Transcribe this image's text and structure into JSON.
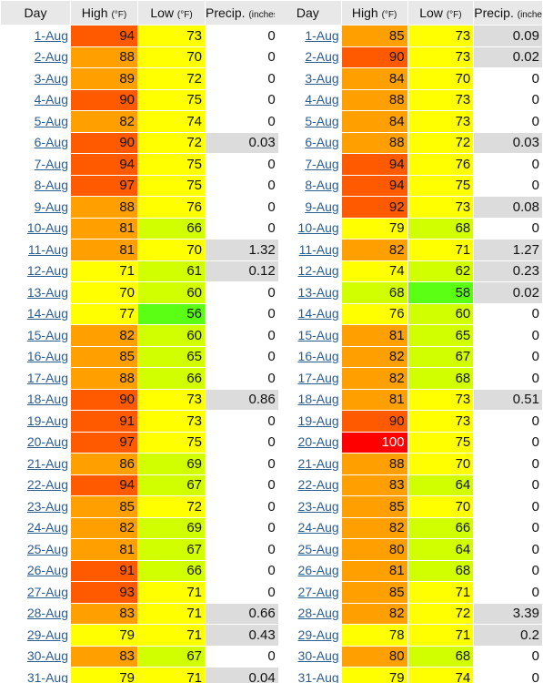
{
  "headers": {
    "day": "Day",
    "high": "High",
    "low": "Low",
    "precip": "Precip.",
    "temp_unit": "(°F)",
    "precip_unit_left": "(inches",
    "precip_unit_right": "(inche"
  },
  "colors": {
    "t100": "#ff0000",
    "t94_90": "#ff5a00",
    "t89_80": "#ff9f00",
    "t79_70": "#ffff00",
    "t69_60": "#d2ff00",
    "t59_50": "#5aff14",
    "precip_rain": "#dcdcdc",
    "precip_dry": "#ffffff",
    "link": "#2a5d8f"
  },
  "left": {
    "rows": [
      {
        "day": "1-Aug",
        "high": 94,
        "low": 73,
        "precip": "0"
      },
      {
        "day": "2-Aug",
        "high": 88,
        "low": 70,
        "precip": "0"
      },
      {
        "day": "3-Aug",
        "high": 89,
        "low": 72,
        "precip": "0"
      },
      {
        "day": "4-Aug",
        "high": 90,
        "low": 75,
        "precip": "0"
      },
      {
        "day": "5-Aug",
        "high": 82,
        "low": 74,
        "precip": "0"
      },
      {
        "day": "6-Aug",
        "high": 90,
        "low": 72,
        "precip": "0.03"
      },
      {
        "day": "7-Aug",
        "high": 94,
        "low": 75,
        "precip": "0"
      },
      {
        "day": "8-Aug",
        "high": 97,
        "low": 75,
        "precip": "0"
      },
      {
        "day": "9-Aug",
        "high": 88,
        "low": 76,
        "precip": "0"
      },
      {
        "day": "10-Aug",
        "high": 81,
        "low": 66,
        "precip": "0"
      },
      {
        "day": "11-Aug",
        "high": 81,
        "low": 70,
        "precip": "1.32"
      },
      {
        "day": "12-Aug",
        "high": 71,
        "low": 61,
        "precip": "0.12"
      },
      {
        "day": "13-Aug",
        "high": 70,
        "low": 60,
        "precip": "0"
      },
      {
        "day": "14-Aug",
        "high": 77,
        "low": 56,
        "precip": "0"
      },
      {
        "day": "15-Aug",
        "high": 82,
        "low": 60,
        "precip": "0"
      },
      {
        "day": "16-Aug",
        "high": 85,
        "low": 65,
        "precip": "0"
      },
      {
        "day": "17-Aug",
        "high": 88,
        "low": 66,
        "precip": "0"
      },
      {
        "day": "18-Aug",
        "high": 90,
        "low": 73,
        "precip": "0.86"
      },
      {
        "day": "19-Aug",
        "high": 91,
        "low": 73,
        "precip": "0"
      },
      {
        "day": "20-Aug",
        "high": 97,
        "low": 75,
        "precip": "0"
      },
      {
        "day": "21-Aug",
        "high": 86,
        "low": 69,
        "precip": "0"
      },
      {
        "day": "22-Aug",
        "high": 94,
        "low": 67,
        "precip": "0"
      },
      {
        "day": "23-Aug",
        "high": 85,
        "low": 72,
        "precip": "0"
      },
      {
        "day": "24-Aug",
        "high": 82,
        "low": 69,
        "precip": "0"
      },
      {
        "day": "25-Aug",
        "high": 81,
        "low": 67,
        "precip": "0"
      },
      {
        "day": "26-Aug",
        "high": 91,
        "low": 66,
        "precip": "0"
      },
      {
        "day": "27-Aug",
        "high": 93,
        "low": 71,
        "precip": "0"
      },
      {
        "day": "28-Aug",
        "high": 83,
        "low": 71,
        "precip": "0.66"
      },
      {
        "day": "29-Aug",
        "high": 79,
        "low": 71,
        "precip": "0.43"
      },
      {
        "day": "30-Aug",
        "high": 83,
        "low": 67,
        "precip": "0"
      },
      {
        "day": "31-Aug",
        "high": 79,
        "low": 71,
        "precip": "0.04"
      }
    ]
  },
  "right": {
    "rows": [
      {
        "day": "1-Aug",
        "high": 85,
        "low": 73,
        "precip": "0.09"
      },
      {
        "day": "2-Aug",
        "high": 90,
        "low": 73,
        "precip": "0.02"
      },
      {
        "day": "3-Aug",
        "high": 84,
        "low": 70,
        "precip": "0"
      },
      {
        "day": "4-Aug",
        "high": 88,
        "low": 73,
        "precip": "0"
      },
      {
        "day": "5-Aug",
        "high": 84,
        "low": 73,
        "precip": "0"
      },
      {
        "day": "6-Aug",
        "high": 88,
        "low": 72,
        "precip": "0.03"
      },
      {
        "day": "7-Aug",
        "high": 94,
        "low": 76,
        "precip": "0"
      },
      {
        "day": "8-Aug",
        "high": 94,
        "low": 75,
        "precip": "0"
      },
      {
        "day": "9-Aug",
        "high": 92,
        "low": 73,
        "precip": "0.08"
      },
      {
        "day": "10-Aug",
        "high": 79,
        "low": 68,
        "precip": "0"
      },
      {
        "day": "11-Aug",
        "high": 82,
        "low": 71,
        "precip": "1.27"
      },
      {
        "day": "12-Aug",
        "high": 74,
        "low": 62,
        "precip": "0.23"
      },
      {
        "day": "13-Aug",
        "high": 68,
        "low": 58,
        "precip": "0.02"
      },
      {
        "day": "14-Aug",
        "high": 76,
        "low": 60,
        "precip": "0"
      },
      {
        "day": "15-Aug",
        "high": 81,
        "low": 65,
        "precip": "0"
      },
      {
        "day": "16-Aug",
        "high": 82,
        "low": 67,
        "precip": "0"
      },
      {
        "day": "17-Aug",
        "high": 82,
        "low": 68,
        "precip": "0"
      },
      {
        "day": "18-Aug",
        "high": 81,
        "low": 73,
        "precip": "0.51"
      },
      {
        "day": "19-Aug",
        "high": 90,
        "low": 73,
        "precip": "0"
      },
      {
        "day": "20-Aug",
        "high": 100,
        "low": 75,
        "precip": "0"
      },
      {
        "day": "21-Aug",
        "high": 88,
        "low": 70,
        "precip": "0"
      },
      {
        "day": "22-Aug",
        "high": 83,
        "low": 64,
        "precip": "0"
      },
      {
        "day": "23-Aug",
        "high": 85,
        "low": 70,
        "precip": "0"
      },
      {
        "day": "24-Aug",
        "high": 82,
        "low": 66,
        "precip": "0"
      },
      {
        "day": "25-Aug",
        "high": 80,
        "low": 64,
        "precip": "0"
      },
      {
        "day": "26-Aug",
        "high": 81,
        "low": 68,
        "precip": "0"
      },
      {
        "day": "27-Aug",
        "high": 85,
        "low": 71,
        "precip": "0"
      },
      {
        "day": "28-Aug",
        "high": 82,
        "low": 72,
        "precip": "3.39"
      },
      {
        "day": "29-Aug",
        "high": 78,
        "low": 71,
        "precip": "0.2"
      },
      {
        "day": "30-Aug",
        "high": 80,
        "low": 68,
        "precip": "0"
      },
      {
        "day": "31-Aug",
        "high": 79,
        "low": 74,
        "precip": "0"
      }
    ]
  }
}
